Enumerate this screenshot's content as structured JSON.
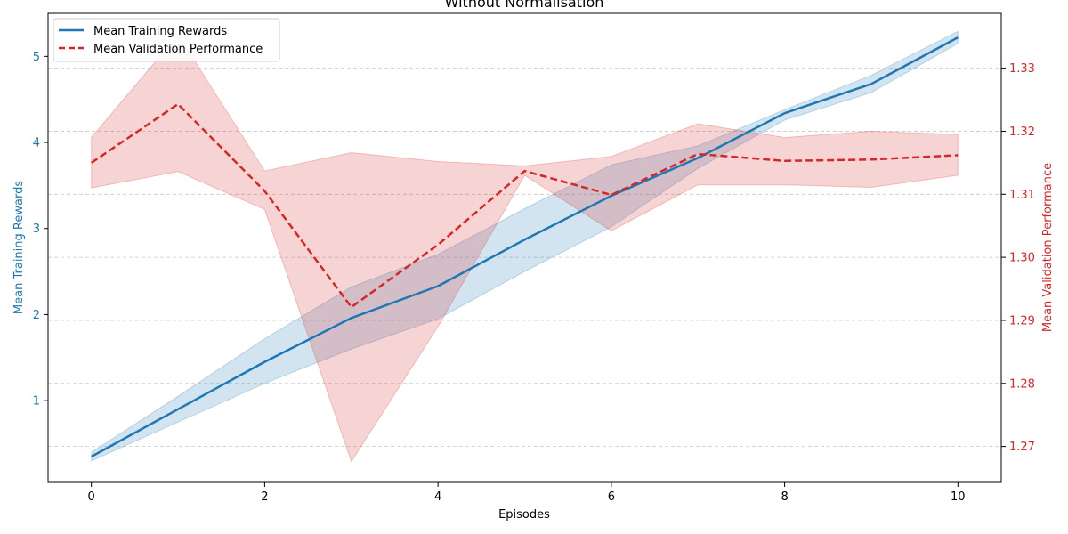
{
  "chart_data": {
    "type": "line",
    "title": "Without Normalisation",
    "xlabel": "Episodes",
    "ylabel_left": "Mean Training Rewards",
    "ylabel_right": "Mean Validation Performance",
    "x": [
      0,
      1,
      2,
      3,
      4,
      5,
      6,
      7,
      8,
      9,
      10
    ],
    "xlim": [
      -0.5,
      10.5
    ],
    "x_ticks": [
      0,
      2,
      4,
      6,
      8,
      10
    ],
    "ylim_left": [
      0.05,
      5.5
    ],
    "y_ticks_left": [
      1,
      2,
      3,
      4,
      5
    ],
    "ylim_right": [
      1.2643,
      1.3387
    ],
    "y_ticks_right": [
      1.27,
      1.28,
      1.29,
      1.3,
      1.31,
      1.32,
      1.33
    ],
    "grid": "horizontal dashed",
    "legend_position": "top-left",
    "colors": {
      "training": "#1f77b4",
      "validation": "#d62728"
    },
    "series": [
      {
        "name": "Mean Training Rewards",
        "axis": "left",
        "style": "solid",
        "values": [
          0.35,
          0.9,
          1.45,
          1.96,
          2.33,
          2.87,
          3.38,
          3.82,
          4.34,
          4.68,
          5.22
        ],
        "lower": [
          0.3,
          0.75,
          1.2,
          1.6,
          1.95,
          2.5,
          3.02,
          3.7,
          4.26,
          4.58,
          5.15
        ],
        "upper": [
          0.4,
          1.05,
          1.72,
          2.32,
          2.7,
          3.23,
          3.74,
          3.96,
          4.38,
          4.78,
          5.29
        ]
      },
      {
        "name": "Mean Validation Performance",
        "axis": "right",
        "style": "dashed",
        "values": [
          1.315,
          1.3243,
          1.3105,
          1.2921,
          1.302,
          1.3137,
          1.3099,
          1.3164,
          1.3153,
          1.3155,
          1.3162
        ],
        "lower": [
          1.311,
          1.3136,
          1.3076,
          1.2676,
          1.289,
          1.313,
          1.3042,
          1.3115,
          1.3115,
          1.3111,
          1.313
        ],
        "upper": [
          1.319,
          1.3353,
          1.3137,
          1.3166,
          1.3152,
          1.3145,
          1.316,
          1.3212,
          1.319,
          1.32,
          1.3195
        ]
      }
    ]
  }
}
